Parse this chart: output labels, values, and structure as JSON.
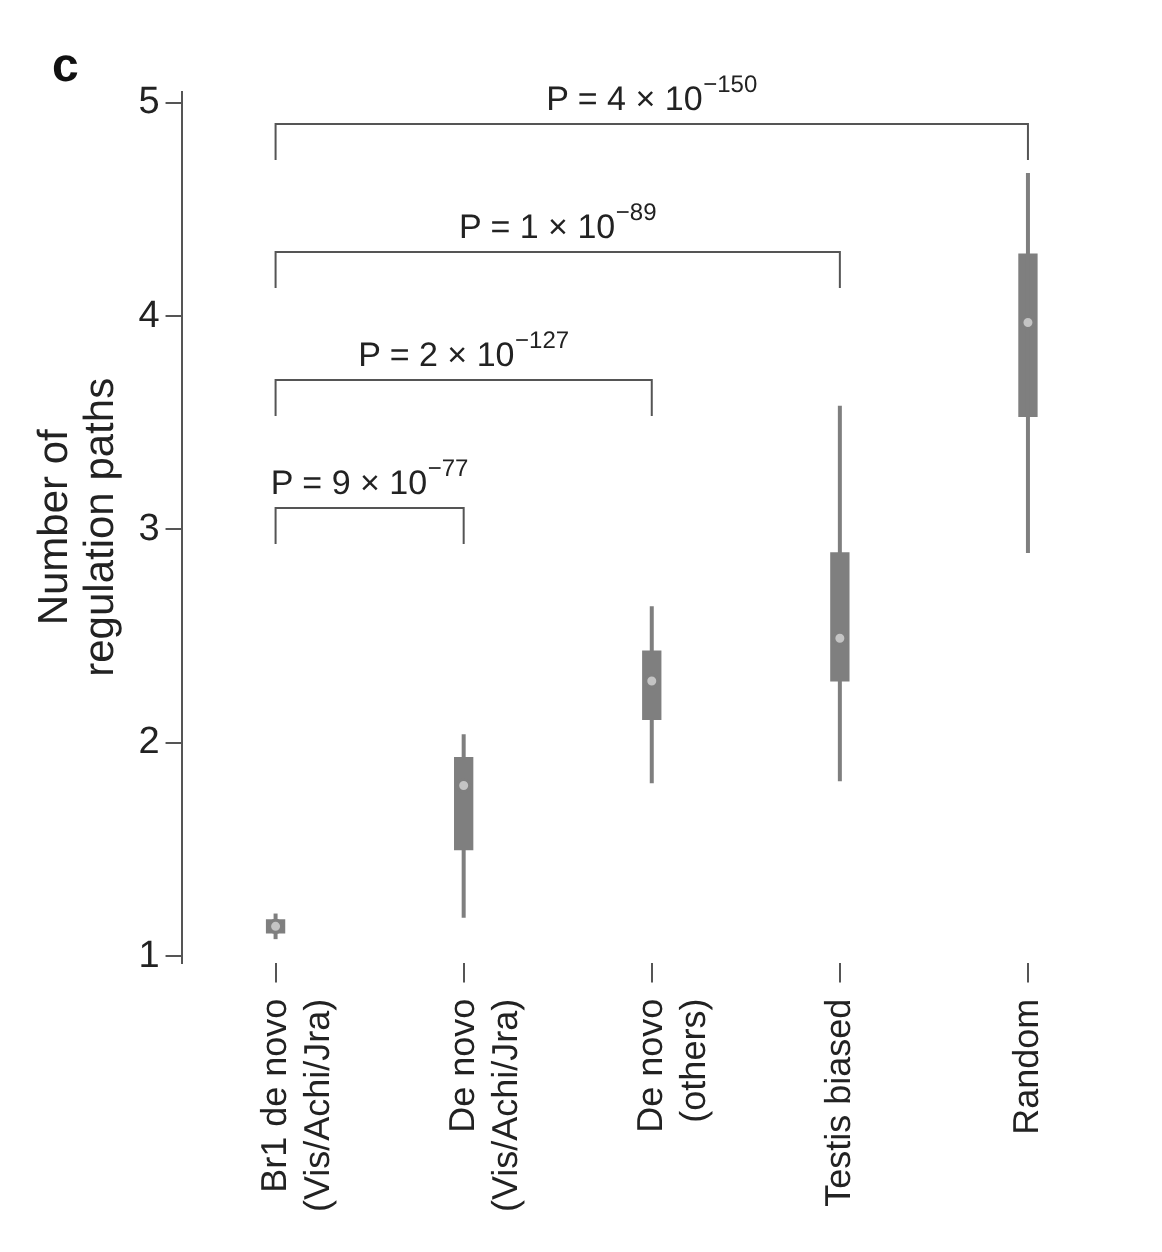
{
  "chart_data": {
    "type": "box",
    "title": "c",
    "ylabel": "Number of regulation paths",
    "categories": [
      "Br1 de novo (Vis/Achi/Jra)",
      "De novo (Vis/Achi/Jra)",
      "De novo (others)",
      "Testis biased",
      "Random"
    ],
    "color": "#7f7f7f",
    "boxes": [
      {
        "low": 1.08,
        "q1": 1.11,
        "median": 1.14,
        "q3": 1.17,
        "high": 1.2
      },
      {
        "low": 1.18,
        "q1": 1.5,
        "median": 1.8,
        "q3": 1.93,
        "high": 2.04
      },
      {
        "low": 1.81,
        "q1": 2.11,
        "median": 2.29,
        "q3": 2.43,
        "high": 2.64
      },
      {
        "low": 1.82,
        "q1": 2.29,
        "median": 2.49,
        "q3": 2.89,
        "high": 3.58
      },
      {
        "low": 2.89,
        "q1": 3.53,
        "median": 3.97,
        "q3": 4.29,
        "high": 4.67
      }
    ],
    "ylim": [
      0.97,
      5.05
    ],
    "yticks": [
      1,
      2,
      3,
      4,
      5
    ],
    "grid": false,
    "legend": false,
    "annotations": [
      "P = 9 × 10$^{−77}$",
      "P = 2 × 10$^{−127}$",
      "P = 1 × 10$^{−89}$",
      "P = 4 × 10$^{−150}$"
    ]
  }
}
